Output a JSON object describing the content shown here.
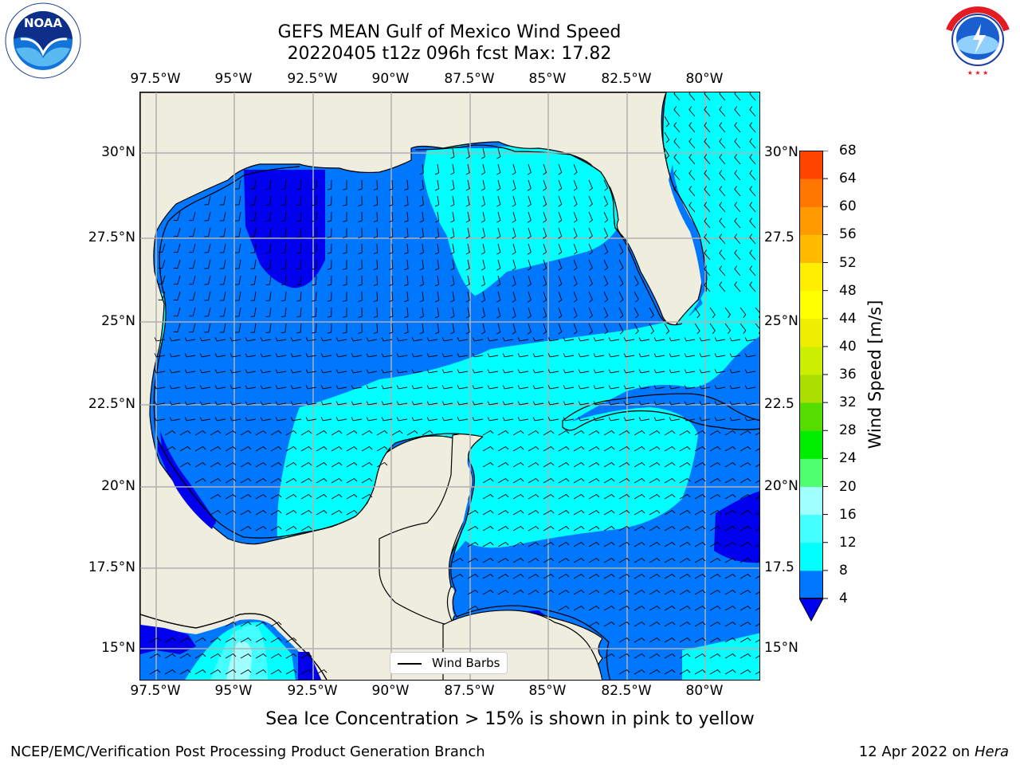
{
  "title": {
    "line1": "GEFS MEAN Gulf of Mexico Wind Speed",
    "line2": "20220405 t12z 096h fcst   Max: 17.82"
  },
  "logos": {
    "noaa": {
      "text": "NOAA",
      "ring_text": "NATIONAL OCEANIC AND ATMOSPHERIC ADMINISTRATION · U.S. DEPARTMENT OF COMMERCE"
    },
    "nws": {
      "ring_text": "NATIONAL WEATHER SERVICE"
    }
  },
  "map": {
    "lon_labels": [
      "97.5°W",
      "95°W",
      "92.5°W",
      "90°W",
      "87.5°W",
      "85°W",
      "82.5°W",
      "80°W"
    ],
    "lat_labels_left": [
      "30°N",
      "27.5°N",
      "25°N",
      "22.5°N",
      "20°N",
      "17.5°N",
      "15°N"
    ],
    "lat_labels_right": [
      "30°N",
      "27.5",
      "25°N",
      "22.5",
      "20°N",
      "17.5",
      "15°N"
    ],
    "extent": {
      "lon_min": -98,
      "lon_max": -78.2,
      "lat_min": 14,
      "lat_max": 31.7
    },
    "colors": {
      "land": "#efedde",
      "grid": "#b0b0b0"
    }
  },
  "legend": {
    "label": "Wind Barbs"
  },
  "colorbar": {
    "label": "Wind Speed [m/s]",
    "ticks": [
      "4",
      "8",
      "12",
      "16",
      "20",
      "24",
      "28",
      "32",
      "36",
      "40",
      "44",
      "48",
      "52",
      "56",
      "60",
      "64",
      "68"
    ],
    "colors": [
      "#0077ff",
      "#00ffff",
      "#44ffff",
      "#a0ffff",
      "#50ff70",
      "#00ee00",
      "#55dd00",
      "#aadd00",
      "#ccee00",
      "#eeee00",
      "#ffff00",
      "#ffee00",
      "#ffbb00",
      "#ff9900",
      "#ff7700",
      "#ff4400",
      "#ff0000"
    ],
    "extend_color": "#0000ee"
  },
  "note": "Sea Ice Concentration > 15% is shown in pink to yellow",
  "footer": {
    "left": "NCEP/EMC/Verification Post Processing Product Generation Branch",
    "right_prefix": "12 Apr 2022 on ",
    "right_host": "Hera"
  }
}
